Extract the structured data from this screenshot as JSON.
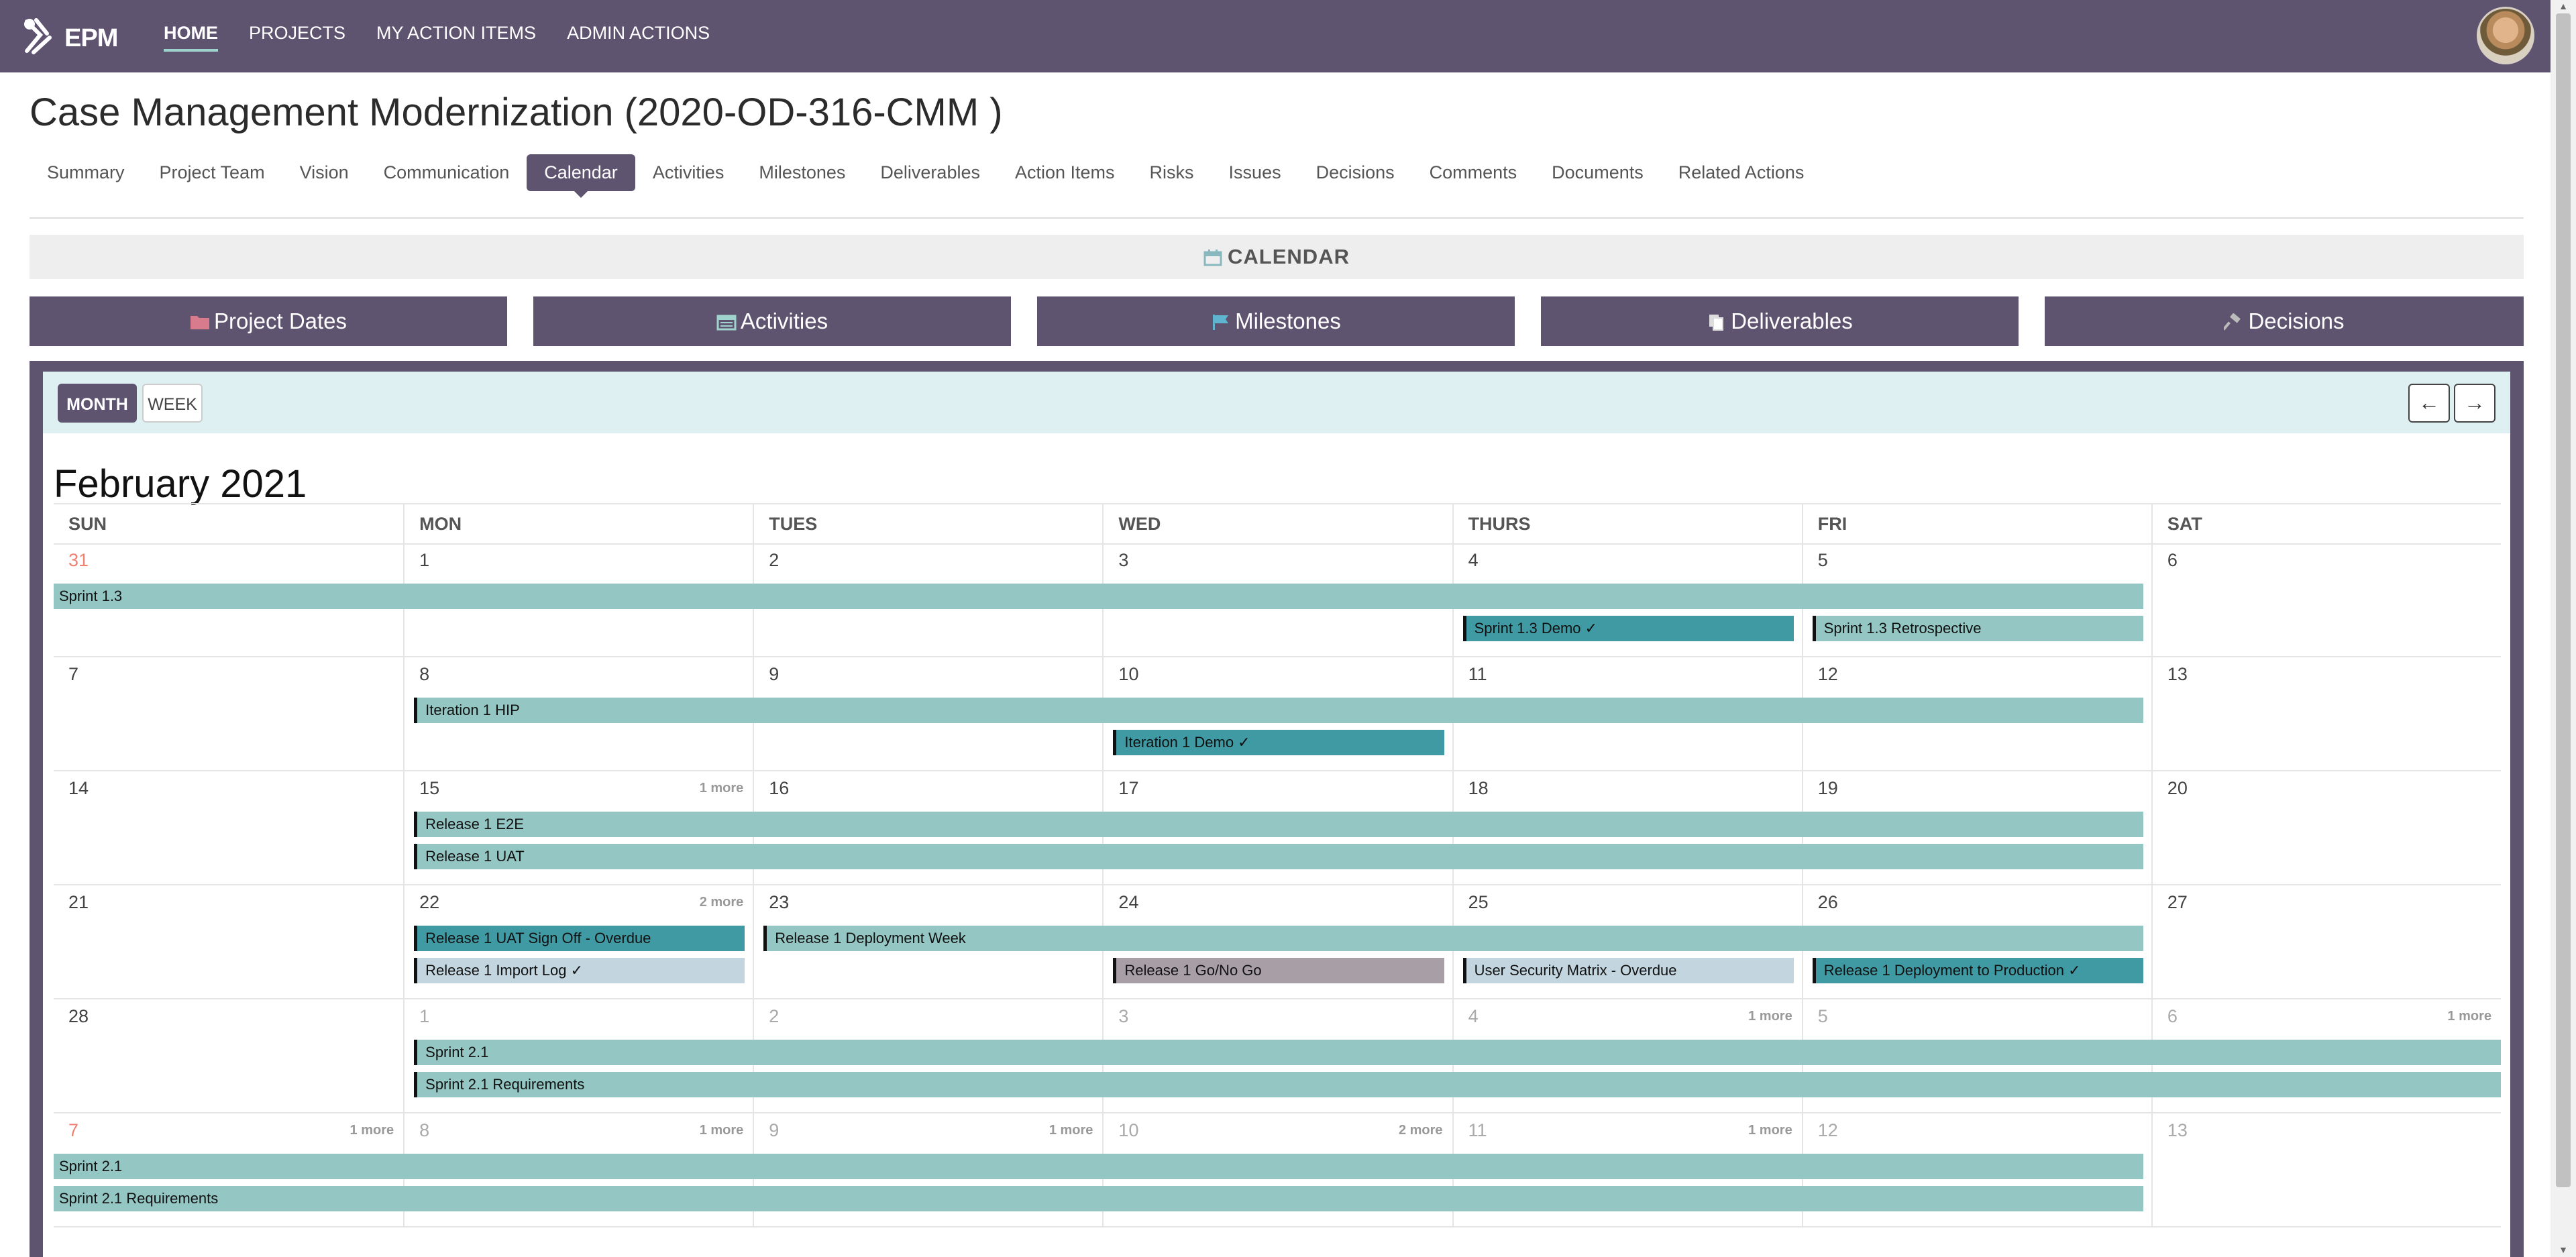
{
  "nav": {
    "logo_text": "EPM",
    "links": [
      "HOME",
      "PROJECTS",
      "MY ACTION ITEMS",
      "ADMIN ACTIONS"
    ]
  },
  "page_title": "Case Management Modernization (2020-OD-316-CMM )",
  "tabs": [
    "Summary",
    "Project Team",
    "Vision",
    "Communication",
    "Calendar",
    "Activities",
    "Milestones",
    "Deliverables",
    "Action Items",
    "Risks",
    "Issues",
    "Decisions",
    "Comments",
    "Documents",
    "Related Actions"
  ],
  "active_tab": "Calendar",
  "calendar_strip": {
    "label": "CALENDAR"
  },
  "filters": [
    "Project Dates",
    "Activities",
    "Milestones",
    "Deliverables",
    "Decisions"
  ],
  "calendar": {
    "view_buttons": {
      "month": "MONTH",
      "week": "WEEK"
    },
    "prev_glyph": "←",
    "next_glyph": "→",
    "month_title": "February 2021",
    "weekdays": [
      "SUN",
      "MON",
      "TUES",
      "WED",
      "THURS",
      "FRI",
      "SAT"
    ],
    "weeks": [
      {
        "days": [
          {
            "n": "31",
            "t": "red"
          },
          {
            "n": "1"
          },
          {
            "n": "2"
          },
          {
            "n": "3"
          },
          {
            "n": "4"
          },
          {
            "n": "5"
          },
          {
            "n": "6"
          }
        ],
        "events": [
          {
            "label": "Sprint 1.3",
            "start": 0,
            "span": 6,
            "lane": 0,
            "style": "noedge"
          },
          {
            "label": "Sprint 1.3 Demo ✓",
            "start": 4,
            "span": 1,
            "lane": 1,
            "style": "teal"
          },
          {
            "label": "Sprint 1.3 Retrospective",
            "start": 5,
            "span": 1,
            "lane": 1,
            "style": ""
          }
        ]
      },
      {
        "days": [
          {
            "n": "7"
          },
          {
            "n": "8"
          },
          {
            "n": "9"
          },
          {
            "n": "10"
          },
          {
            "n": "11"
          },
          {
            "n": "12"
          },
          {
            "n": "13"
          }
        ],
        "events": [
          {
            "label": "Iteration 1 HIP",
            "start": 1,
            "span": 5,
            "lane": 0,
            "style": ""
          },
          {
            "label": "Iteration 1 Demo ✓",
            "start": 3,
            "span": 1,
            "lane": 1,
            "style": "teal"
          }
        ]
      },
      {
        "days": [
          {
            "n": "14"
          },
          {
            "n": "15",
            "more": "1 more"
          },
          {
            "n": "16"
          },
          {
            "n": "17"
          },
          {
            "n": "18"
          },
          {
            "n": "19"
          },
          {
            "n": "20"
          }
        ],
        "events": [
          {
            "label": "Release 1 E2E",
            "start": 1,
            "span": 5,
            "lane": 0,
            "style": ""
          },
          {
            "label": "Release 1 UAT",
            "start": 1,
            "span": 5,
            "lane": 1,
            "style": ""
          }
        ]
      },
      {
        "days": [
          {
            "n": "21"
          },
          {
            "n": "22",
            "more": "2 more"
          },
          {
            "n": "23"
          },
          {
            "n": "24"
          },
          {
            "n": "25"
          },
          {
            "n": "26"
          },
          {
            "n": "27"
          }
        ],
        "events": [
          {
            "label": "Release 1 UAT Sign Off - Overdue",
            "start": 1,
            "span": 1,
            "lane": 0,
            "style": "teal"
          },
          {
            "label": "Release 1 Deployment Week",
            "start": 2,
            "span": 4,
            "lane": 0,
            "style": ""
          },
          {
            "label": "Release 1 Import Log ✓",
            "start": 1,
            "span": 1,
            "lane": 1,
            "style": "light"
          },
          {
            "label": "Release 1 Go/No Go",
            "start": 3,
            "span": 1,
            "lane": 1,
            "style": "grey"
          },
          {
            "label": "User Security Matrix - Overdue",
            "start": 4,
            "span": 1,
            "lane": 1,
            "style": "light"
          },
          {
            "label": "Release 1 Deployment to Production ✓",
            "start": 5,
            "span": 1,
            "lane": 1,
            "style": "teal"
          }
        ]
      },
      {
        "days": [
          {
            "n": "28"
          },
          {
            "n": "1",
            "t": "other"
          },
          {
            "n": "2",
            "t": "other"
          },
          {
            "n": "3",
            "t": "other"
          },
          {
            "n": "4",
            "t": "other",
            "more": "1 more"
          },
          {
            "n": "5",
            "t": "other"
          },
          {
            "n": "6",
            "t": "other",
            "more": "1 more"
          }
        ],
        "events": [
          {
            "label": "Sprint 2.1",
            "start": 1,
            "span": 6,
            "lane": 0,
            "style": ""
          },
          {
            "label": "Sprint 2.1 Requirements",
            "start": 1,
            "span": 6,
            "lane": 1,
            "style": ""
          }
        ]
      },
      {
        "days": [
          {
            "n": "7",
            "t": "red",
            "more": "1 more"
          },
          {
            "n": "8",
            "t": "other",
            "more": "1 more"
          },
          {
            "n": "9",
            "t": "other",
            "more": "1 more"
          },
          {
            "n": "10",
            "t": "other",
            "more": "2 more"
          },
          {
            "n": "11",
            "t": "other",
            "more": "1 more"
          },
          {
            "n": "12",
            "t": "other"
          },
          {
            "n": "13",
            "t": "other"
          }
        ],
        "events": [
          {
            "label": "Sprint 2.1",
            "start": 0,
            "span": 6,
            "lane": 0,
            "style": "noedge"
          },
          {
            "label": "Sprint 2.1 Requirements",
            "start": 0,
            "span": 6,
            "lane": 1,
            "style": "noedge"
          }
        ]
      }
    ]
  },
  "colors": {
    "header_purple": "#5f5470",
    "event_teal_light": "#94c7c3",
    "event_teal_dark": "#3f9aa3",
    "event_blue_grey": "#c3d6df",
    "event_grey": "#a79ea6",
    "toolbar_bg": "#dff0f3"
  },
  "icons": {
    "filters": [
      "folder-icon",
      "calendar-icon",
      "flag-icon",
      "copy-icon",
      "gavel-icon"
    ]
  }
}
